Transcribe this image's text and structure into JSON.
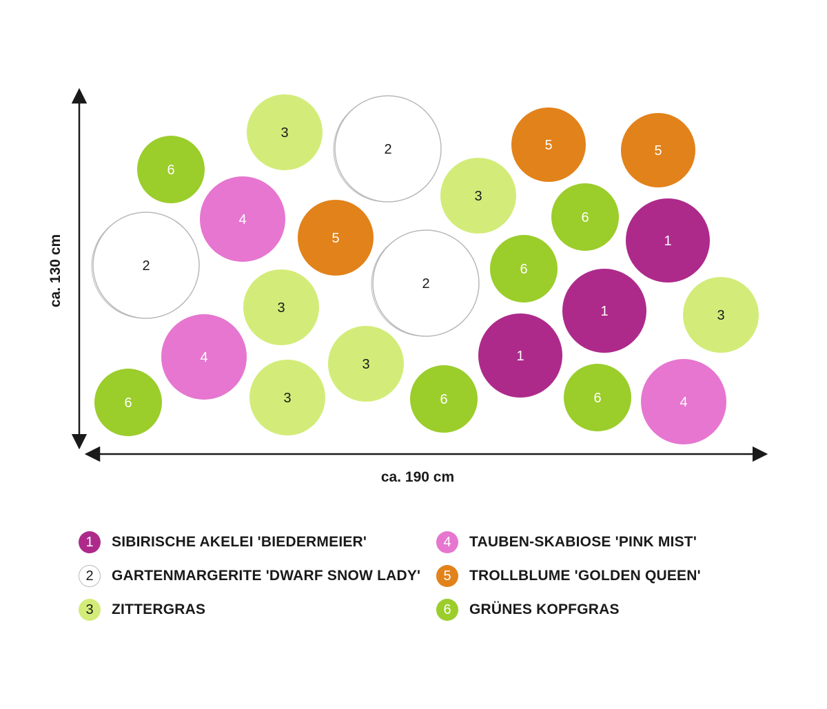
{
  "dimensions": {
    "height_label": "ca. 130 cm",
    "width_label": "ca. 190 cm"
  },
  "colors": {
    "1": "#ad2a8b",
    "2": "#ffffff",
    "3": "#d3ec79",
    "4": "#e676cf",
    "5": "#e2821a",
    "6": "#9bcd2b",
    "outline": "#b8b8b8",
    "arrow": "#1a1a1a"
  },
  "plants": [
    {
      "number": "6"
    },
    {
      "number": "3"
    },
    {
      "number": "2"
    },
    {
      "number": "5"
    },
    {
      "number": "5"
    },
    {
      "number": "4"
    },
    {
      "number": "3"
    },
    {
      "number": "6"
    },
    {
      "number": "2"
    },
    {
      "number": "5"
    },
    {
      "number": "1"
    },
    {
      "number": "2"
    },
    {
      "number": "6"
    },
    {
      "number": "3"
    },
    {
      "number": "1"
    },
    {
      "number": "3"
    },
    {
      "number": "4"
    },
    {
      "number": "3"
    },
    {
      "number": "1"
    },
    {
      "number": "6"
    },
    {
      "number": "3"
    },
    {
      "number": "6"
    },
    {
      "number": "6"
    },
    {
      "number": "4"
    }
  ],
  "legend": [
    {
      "number": "1",
      "label": "SIBIRISCHE AKELEI 'BIEDERMEIER'"
    },
    {
      "number": "2",
      "label": "GARTENMARGERITE 'DWARF SNOW LADY'"
    },
    {
      "number": "3",
      "label": "ZITTERGRAS"
    },
    {
      "number": "4",
      "label": "TAUBEN-SKABIOSE 'PINK MIST'"
    },
    {
      "number": "5",
      "label": "TROLLBLUME 'GOLDEN QUEEN'"
    },
    {
      "number": "6",
      "label": "GRÜNES KOPFGRAS"
    }
  ]
}
